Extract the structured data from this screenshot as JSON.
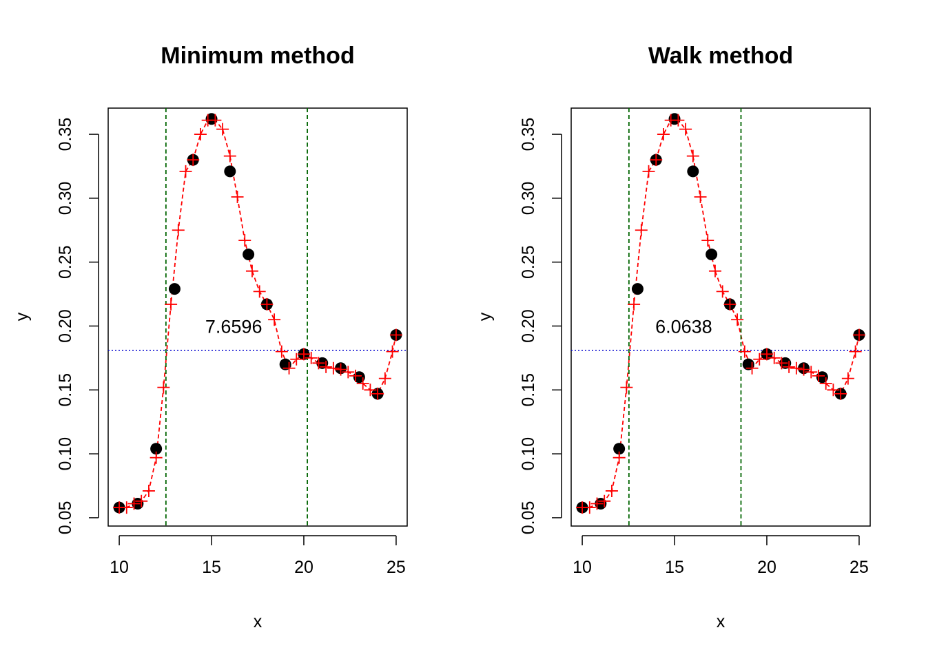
{
  "chart_data": [
    {
      "type": "scatter",
      "title": "Minimum method",
      "xlabel": "x",
      "ylabel": "y",
      "xlim": [
        9.4,
        25.6
      ],
      "ylim": [
        0.0435,
        0.3705
      ],
      "xticks": [
        10,
        15,
        20,
        25
      ],
      "xtick_labels": [
        "10",
        "15",
        "20",
        "25"
      ],
      "yticks": [
        0.05,
        0.1,
        0.15,
        0.2,
        0.25,
        0.3,
        0.35
      ],
      "ytick_labels": [
        "0.05",
        "0.10",
        "0.15",
        "0.20",
        "0.25",
        "0.30",
        "0.35"
      ],
      "grid": false,
      "points": {
        "x": [
          10,
          11,
          12,
          13,
          14,
          15,
          16,
          17,
          18,
          19,
          20,
          21,
          22,
          23,
          24,
          25
        ],
        "y": [
          0.058,
          0.061,
          0.104,
          0.229,
          0.33,
          0.362,
          0.321,
          0.256,
          0.217,
          0.17,
          0.178,
          0.171,
          0.167,
          0.16,
          0.147,
          0.193
        ]
      },
      "interpolation": {
        "x": [
          10,
          10.4,
          10.8,
          11.2,
          11.6,
          12.0,
          12.4,
          12.8,
          13.2,
          13.6,
          14.0,
          14.4,
          14.8,
          15.2,
          15.6,
          16.0,
          16.4,
          16.8,
          17.2,
          17.6,
          18.0,
          18.4,
          18.8,
          19.2,
          19.6,
          20.0,
          20.4,
          20.8,
          21.2,
          21.6,
          22.0,
          22.4,
          22.8,
          23.2,
          23.6,
          24.0,
          24.4,
          24.8,
          25.0
        ],
        "y": [
          0.058,
          0.058,
          0.061,
          0.063,
          0.071,
          0.097,
          0.152,
          0.217,
          0.275,
          0.321,
          0.33,
          0.35,
          0.361,
          0.361,
          0.354,
          0.333,
          0.301,
          0.267,
          0.243,
          0.227,
          0.217,
          0.205,
          0.18,
          0.167,
          0.174,
          0.178,
          0.175,
          0.171,
          0.168,
          0.167,
          0.166,
          0.164,
          0.161,
          0.155,
          0.15,
          0.147,
          0.159,
          0.18,
          0.193
        ]
      },
      "hline": 0.181,
      "vlines": [
        12.53,
        20.19
      ],
      "annotation": {
        "text": "7.6596",
        "x": 16.2,
        "y": 0.2
      }
    },
    {
      "type": "scatter",
      "title": "Walk method",
      "xlabel": "x",
      "ylabel": "y",
      "xlim": [
        9.4,
        25.6
      ],
      "ylim": [
        0.0435,
        0.3705
      ],
      "xticks": [
        10,
        15,
        20,
        25
      ],
      "xtick_labels": [
        "10",
        "15",
        "20",
        "25"
      ],
      "yticks": [
        0.05,
        0.1,
        0.15,
        0.2,
        0.25,
        0.3,
        0.35
      ],
      "ytick_labels": [
        "0.05",
        "0.10",
        "0.15",
        "0.20",
        "0.25",
        "0.30",
        "0.35"
      ],
      "grid": false,
      "points": {
        "x": [
          10,
          11,
          12,
          13,
          14,
          15,
          16,
          17,
          18,
          19,
          20,
          21,
          22,
          23,
          24,
          25
        ],
        "y": [
          0.058,
          0.061,
          0.104,
          0.229,
          0.33,
          0.362,
          0.321,
          0.256,
          0.217,
          0.17,
          0.178,
          0.171,
          0.167,
          0.16,
          0.147,
          0.193
        ]
      },
      "interpolation": {
        "x": [
          10,
          10.4,
          10.8,
          11.2,
          11.6,
          12.0,
          12.4,
          12.8,
          13.2,
          13.6,
          14.0,
          14.4,
          14.8,
          15.2,
          15.6,
          16.0,
          16.4,
          16.8,
          17.2,
          17.6,
          18.0,
          18.4,
          18.8,
          19.2,
          19.6,
          20.0,
          20.4,
          20.8,
          21.2,
          21.6,
          22.0,
          22.4,
          22.8,
          23.2,
          23.6,
          24.0,
          24.4,
          24.8,
          25.0
        ],
        "y": [
          0.058,
          0.058,
          0.061,
          0.063,
          0.071,
          0.097,
          0.152,
          0.217,
          0.275,
          0.321,
          0.33,
          0.35,
          0.361,
          0.361,
          0.354,
          0.333,
          0.301,
          0.267,
          0.243,
          0.227,
          0.217,
          0.205,
          0.18,
          0.167,
          0.174,
          0.178,
          0.175,
          0.171,
          0.168,
          0.167,
          0.166,
          0.164,
          0.161,
          0.155,
          0.15,
          0.147,
          0.159,
          0.18,
          0.193
        ]
      },
      "hline": 0.181,
      "vlines": [
        12.53,
        18.6
      ],
      "annotation": {
        "text": "6.0638",
        "x": 15.5,
        "y": 0.2
      }
    }
  ],
  "colors": {
    "points": "#000000",
    "interpolation": "#ff0000",
    "vlines": "#006400",
    "hline": "#0000cd",
    "frame": "#000000"
  }
}
